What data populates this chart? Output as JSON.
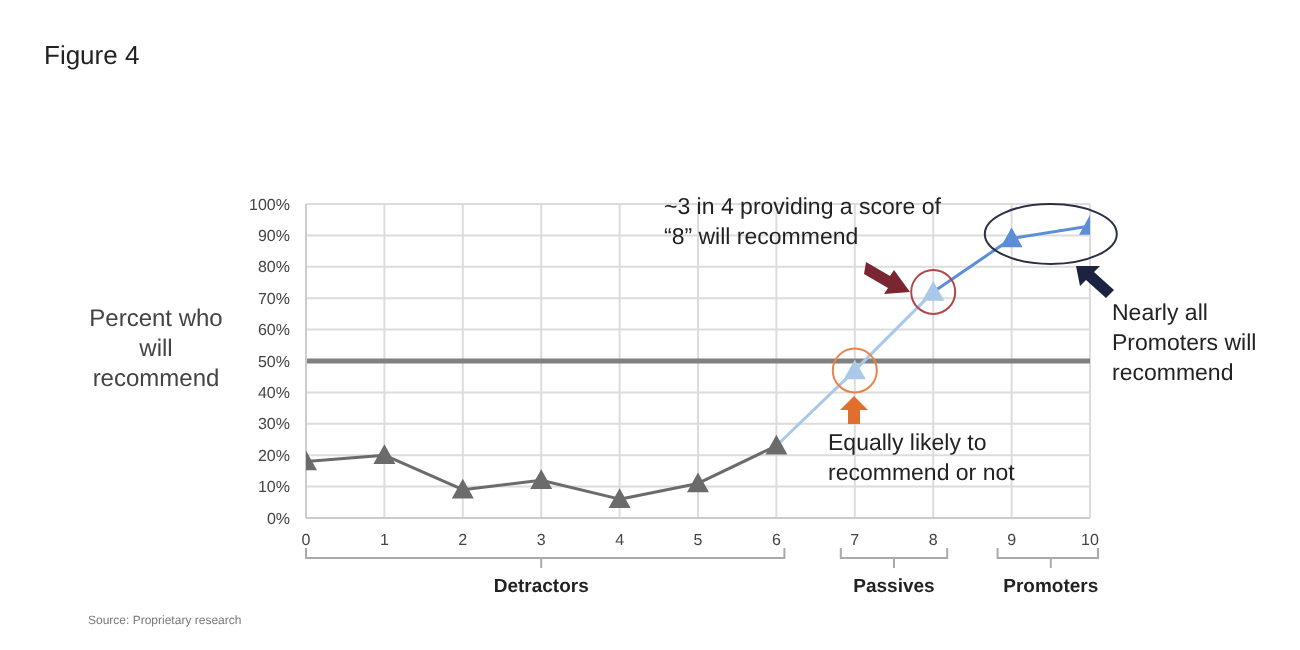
{
  "chart_data": {
    "type": "line",
    "title": "Figure 4",
    "ylabel": "Percent who will recommend",
    "x": [
      0,
      1,
      2,
      3,
      4,
      5,
      6,
      7,
      8,
      9,
      10
    ],
    "values": [
      18,
      20,
      9,
      12,
      6,
      11,
      23,
      47,
      72,
      89,
      93
    ],
    "colors": [
      "#6b6b6b",
      "#6b6b6b",
      "#6b6b6b",
      "#6b6b6b",
      "#6b6b6b",
      "#6b6b6b",
      "#6b6b6b",
      "#a9c8ea",
      "#a9c8ea",
      "#5b8ed6",
      "#5b8ed6"
    ],
    "xlim": [
      0,
      10
    ],
    "xticks": [
      0,
      1,
      2,
      3,
      4,
      5,
      6,
      7,
      8,
      9,
      10
    ],
    "ylim": [
      0,
      100
    ],
    "yticks": [
      {
        "value": 0,
        "label": "0%"
      },
      {
        "value": 10,
        "label": "10%"
      },
      {
        "value": 20,
        "label": "20%"
      },
      {
        "value": 30,
        "label": "30%"
      },
      {
        "value": 40,
        "label": "40%"
      },
      {
        "value": 50,
        "label": "50%"
      },
      {
        "value": 60,
        "label": "60%"
      },
      {
        "value": 70,
        "label": "70%"
      },
      {
        "value": 80,
        "label": "80%"
      },
      {
        "value": 90,
        "label": "90%"
      },
      {
        "value": 100,
        "label": "100%"
      }
    ],
    "grid": true,
    "legend": false,
    "marker": "triangle",
    "line_style": "solid",
    "ref_lines": [
      {
        "axis": "y",
        "value": 50,
        "color": "#808080"
      }
    ],
    "annotations": [
      {
        "text": "~3 in 4 providing a score of “8”  will recommend",
        "x": 8,
        "y": 72
      },
      {
        "text": "Equally likely to recommend or not",
        "x": 7,
        "y": 47
      },
      "Nearly all Promoters will recommend",
      "Detractors",
      "Passives",
      "Promoters",
      "Source: Proprietary research"
    ]
  }
}
